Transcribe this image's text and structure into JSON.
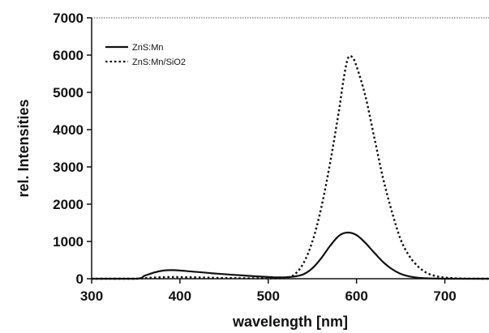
{
  "chart_data": {
    "type": "line",
    "title": "",
    "xlabel": "wavelength [nm]",
    "ylabel": "rel. Intensities",
    "xlim": [
      300,
      750
    ],
    "ylim": [
      0,
      7000
    ],
    "xticks": [
      300,
      400,
      500,
      600,
      700
    ],
    "yticks": [
      0,
      1000,
      2000,
      3000,
      4000,
      5000,
      6000,
      7000
    ],
    "grid": false,
    "legend_position": "top-left",
    "series": [
      {
        "name": "ZnS:Mn",
        "style": "solid",
        "color": "#111111",
        "x": [
          300,
          350,
          360,
          370,
          380,
          390,
          400,
          410,
          420,
          440,
          460,
          480,
          500,
          510,
          520,
          530,
          540,
          550,
          560,
          570,
          580,
          590,
          600,
          610,
          620,
          630,
          640,
          650,
          660,
          670,
          680,
          700,
          750
        ],
        "y": [
          0,
          0,
          80,
          160,
          215,
          230,
          220,
          200,
          180,
          140,
          105,
          75,
          45,
          35,
          40,
          60,
          120,
          280,
          550,
          880,
          1150,
          1240,
          1170,
          960,
          700,
          450,
          260,
          130,
          60,
          25,
          10,
          0,
          0
        ]
      },
      {
        "name": "ZnS:Mn/SiO2",
        "style": "dotted",
        "color": "#111111",
        "x": [
          300,
          350,
          360,
          370,
          380,
          390,
          400,
          420,
          450,
          500,
          520,
          530,
          540,
          550,
          560,
          570,
          580,
          585,
          590,
          595,
          600,
          610,
          620,
          630,
          640,
          650,
          660,
          670,
          680,
          690,
          700,
          720,
          750
        ],
        "y": [
          0,
          0,
          15,
          30,
          40,
          45,
          42,
          35,
          20,
          10,
          30,
          120,
          420,
          1000,
          1900,
          3100,
          4500,
          5300,
          5900,
          5950,
          5700,
          4900,
          3800,
          2700,
          1800,
          1050,
          600,
          320,
          150,
          70,
          30,
          5,
          0
        ]
      }
    ]
  }
}
